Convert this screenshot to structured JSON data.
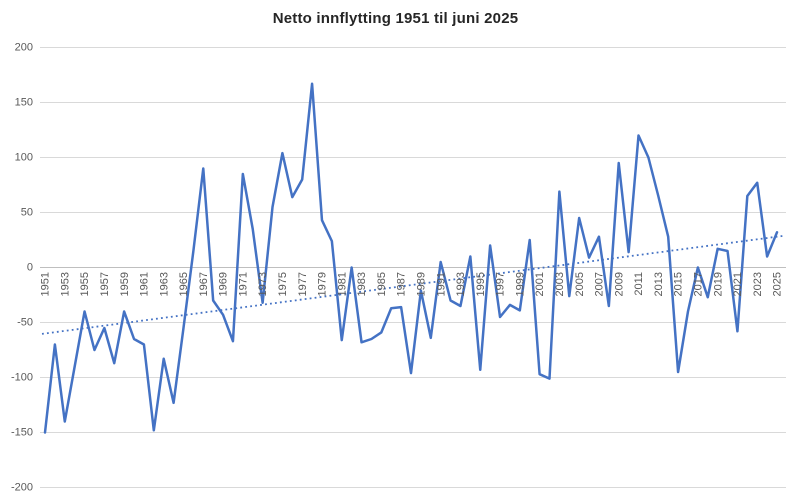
{
  "title": "Netto innflytting 1951 til juni 2025",
  "colors": {
    "series_line": "#4472C4",
    "trend_line": "#4472C4",
    "gridline": "#D9D9D9",
    "zero_axis_line": "#BFBFBF",
    "axis_label_text": "#595959",
    "title_text": "#262626",
    "background": "#FFFFFF"
  },
  "chart_data": {
    "type": "line",
    "title": "Netto innflytting 1951 til juni 2025",
    "series_name": "Netto innflytting",
    "legend": "none",
    "grid": "horizontal",
    "ylim": [
      -200,
      200
    ],
    "ytick_values": [
      200,
      150,
      100,
      50,
      0,
      -50,
      -100,
      -150,
      -200
    ],
    "xtick_labels": [
      "1951",
      "1953",
      "1955",
      "1957",
      "1959",
      "1961",
      "1963",
      "1965",
      "1967",
      "1969",
      "1971",
      "1973",
      "1975",
      "1977",
      "1979",
      "1981",
      "1983",
      "1985",
      "1987",
      "1989",
      "1991",
      "1993",
      "1995",
      "1997",
      "1999",
      "2001",
      "2003",
      "2005",
      "2007",
      "2009",
      "2011",
      "2013",
      "2015",
      "2017",
      "2019",
      "2021",
      "2023",
      "2025"
    ],
    "x": [
      1951,
      1952,
      1953,
      1954,
      1955,
      1956,
      1957,
      1958,
      1959,
      1960,
      1961,
      1962,
      1963,
      1964,
      1965,
      1966,
      1967,
      1968,
      1969,
      1970,
      1971,
      1972,
      1973,
      1974,
      1975,
      1976,
      1977,
      1978,
      1979,
      1980,
      1981,
      1982,
      1983,
      1984,
      1985,
      1986,
      1987,
      1988,
      1989,
      1990,
      1991,
      1992,
      1993,
      1994,
      1995,
      1996,
      1997,
      1998,
      1999,
      2000,
      2001,
      2002,
      2003,
      2004,
      2005,
      2006,
      2007,
      2008,
      2009,
      2010,
      2011,
      2012,
      2013,
      2014,
      2015,
      2016,
      2017,
      2018,
      2019,
      2020,
      2021,
      2022,
      2023,
      2024,
      2025
    ],
    "values": [
      -150,
      -70,
      -140,
      -90,
      -40,
      -75,
      -55,
      -87,
      -40,
      -65,
      -70,
      -148,
      -83,
      -123,
      -55,
      15,
      90,
      -30,
      -43,
      -67,
      85,
      35,
      -32,
      55,
      104,
      64,
      80,
      167,
      43,
      24,
      -66,
      0,
      -68,
      -65,
      -59,
      -37,
      -36,
      -96,
      -21,
      -64,
      5,
      -30,
      -35,
      10,
      -93,
      20,
      -45,
      -34,
      -39,
      25,
      -97,
      -101,
      69,
      -26,
      45,
      9,
      28,
      -35,
      95,
      14,
      120,
      100,
      65,
      28,
      -95,
      -40,
      0,
      -27,
      17,
      15,
      -58,
      65,
      77,
      10,
      32
    ],
    "trendline": {
      "style": "dotted",
      "value_at_1951": -60,
      "value_at_2025": 28
    }
  }
}
